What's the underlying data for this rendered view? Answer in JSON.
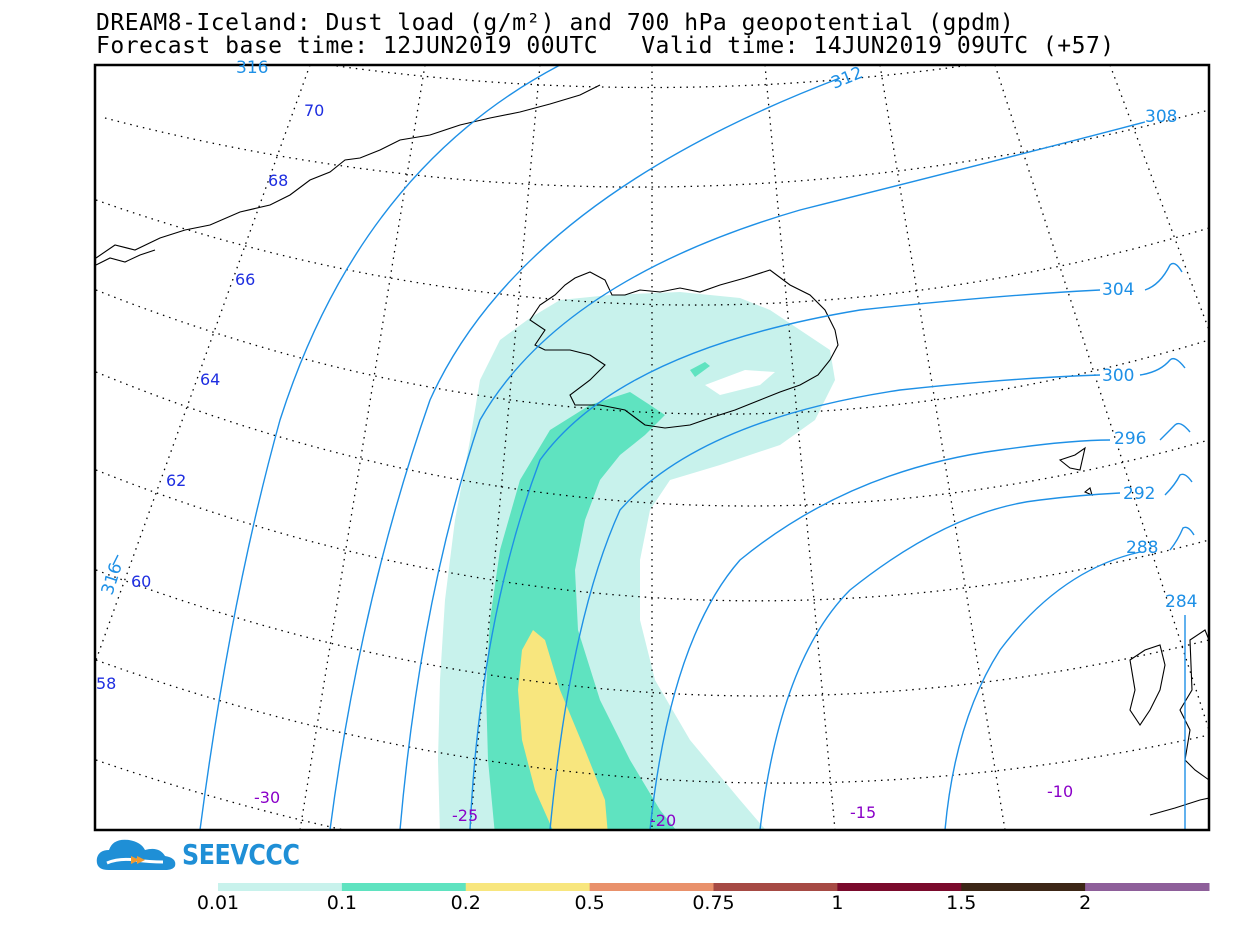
{
  "header": {
    "line1": "DREAM8-Iceland: Dust load (g/m²) and 700 hPa geopotential (gpdm)",
    "line2": "Forecast base time: 12JUN2019 00UTC   Valid time: 14JUN2019 09UTC (+57)"
  },
  "map": {
    "lat_labels": [
      "70",
      "68",
      "66",
      "64",
      "62",
      "60",
      "58"
    ],
    "lon_labels": [
      "-30",
      "-25",
      "-20",
      "-15",
      "-10"
    ],
    "contour_labels": [
      "316",
      "312",
      "308",
      "304",
      "300",
      "296",
      "292",
      "288",
      "284",
      "316"
    ],
    "colors": {
      "contour": "#1e90e6",
      "lat_label": "#1e2ee0",
      "lon_label": "#8a00c8"
    }
  },
  "logo": {
    "text": "SEEVCCC",
    "color": "#1f8fd6"
  },
  "colorbar": {
    "labels": [
      "0.01",
      "0.1",
      "0.2",
      "0.5",
      "0.75",
      "1",
      "1.5",
      "2"
    ],
    "colors": [
      "#c8f2ec",
      "#5fe3c0",
      "#f8e67e",
      "#e9916b",
      "#a64a44",
      "#7a0a2c",
      "#3c2616",
      "#8e5f9a"
    ]
  }
}
